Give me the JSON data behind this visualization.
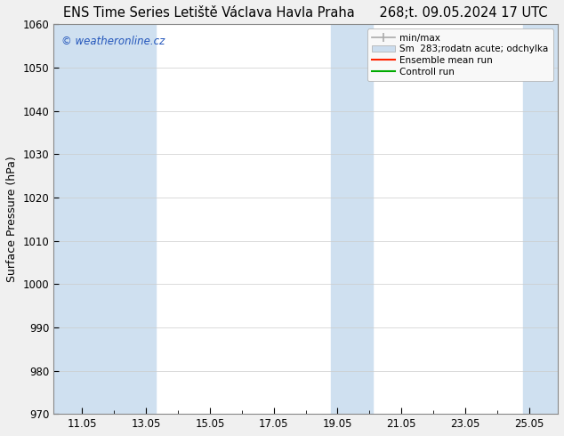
{
  "title_left": "ENS Time Series Letiště Václava Havla Praha",
  "title_right": "268;t. 09.05.2024 17 UTC",
  "ylabel": "Surface Pressure (hPa)",
  "ylim": [
    970,
    1060
  ],
  "yticks": [
    970,
    980,
    990,
    1000,
    1010,
    1020,
    1030,
    1040,
    1050,
    1060
  ],
  "xlim_start": 10.1,
  "xlim_end": 25.9,
  "xtick_labels": [
    "11.05",
    "13.05",
    "15.05",
    "17.05",
    "19.05",
    "21.05",
    "23.05",
    "25.05"
  ],
  "xtick_positions": [
    11.0,
    13.0,
    15.0,
    17.0,
    19.0,
    21.0,
    23.0,
    25.0
  ],
  "shaded_bands": [
    {
      "x_start": 10.1,
      "x_end": 13.3
    },
    {
      "x_start": 18.8,
      "x_end": 20.1
    },
    {
      "x_start": 24.8,
      "x_end": 25.9
    }
  ],
  "band_color": "#cfe0f0",
  "background_color": "#f0f0f0",
  "plot_bg_color": "#ffffff",
  "watermark_text": "© weatheronline.cz",
  "watermark_color": "#2255bb",
  "title_fontsize": 10.5,
  "tick_fontsize": 8.5,
  "axis_label_fontsize": 9,
  "grid_color": "#cccccc",
  "border_color": "#888888",
  "legend_minmax_color": "#aaaaaa",
  "legend_sm_color": "#ccddee",
  "legend_ens_color": "#ff2200",
  "legend_ctrl_color": "#00aa00"
}
